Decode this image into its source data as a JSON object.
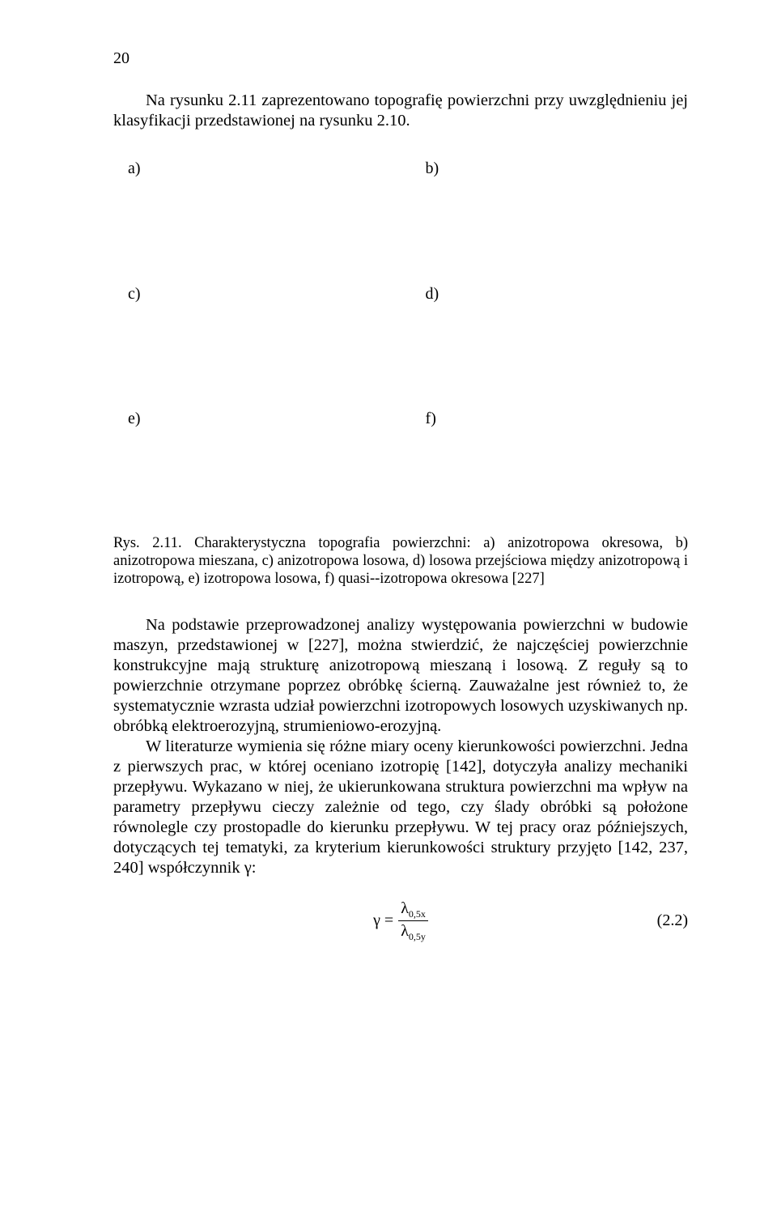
{
  "pageNumber": "20",
  "intro": "Na rysunku 2.11 zaprezentowano topografię powierzchni przy uwzględnieniu jej klasyfikacji przedstawionej na rysunku 2.10.",
  "labels": {
    "row1": {
      "left": "a)",
      "right": "b)"
    },
    "row2": {
      "left": "c)",
      "right": "d)"
    },
    "row3": {
      "left": "e)",
      "right": "f)"
    }
  },
  "caption": "Rys. 2.11. Charakterystyczna topografia powierzchni: a) anizotropowa okresowa, b) anizotropowa mieszana, c) anizotropowa losowa, d) losowa przejściowa między anizotropową i izotropową, e) izotropowa losowa, f) quasi--izotropowa okresowa [227]",
  "body1": "Na podstawie przeprowadzonej analizy występowania powierzchni w budowie maszyn, przedstawionej w [227], można stwierdzić, że najczęściej powierzchnie konstrukcyjne mają strukturę anizotropową mieszaną i losową. Z reguły są to powierzchnie otrzymane poprzez obróbkę ścierną. Zauważalne jest również to, że systematycznie wzrasta udział powierzchni izotropowych losowych uzyskiwanych np. obróbką elektroerozyjną, strumieniowo-erozyjną.",
  "body2": "W literaturze wymienia się różne miary oceny kierunkowości powierzchni. Jedna z pierwszych prac, w której oceniano izotropię [142], dotyczyła analizy mechaniki przepływu. Wykazano w niej, że ukierunkowana struktura powierzchni ma wpływ na parametry przepływu cieczy zależnie od tego, czy ślady obróbki są położone równolegle czy prostopadle do kierunku przepływu. W tej pracy oraz późniejszych, dotyczących tej tematyki, za kryterium kierunkowości struktury przyjęto [142, 237, 240] współczynnik γ:",
  "equation": {
    "lhs": "γ =",
    "numLambda": "λ",
    "numSub": "0,5x",
    "denLambda": "λ",
    "denSub": "0,5y",
    "number": "(2.2)"
  }
}
